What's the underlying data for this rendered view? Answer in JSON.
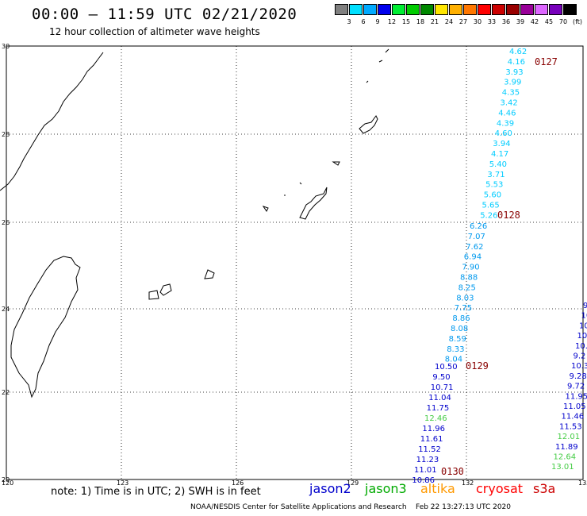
{
  "title": "00:00 — 11:59 UTC 02/21/2020",
  "subtitle": "12 hour collection of altimeter wave heights",
  "legend": {
    "colors": [
      "#808080",
      "#00e0ff",
      "#00aaff",
      "#0000ee",
      "#00ee33",
      "#00cc00",
      "#008800",
      "#ffe600",
      "#ffb000",
      "#ff7700",
      "#ff0000",
      "#cc0000",
      "#990000",
      "#990099",
      "#dd66ff",
      "#7700bb",
      "#000000"
    ],
    "labels": [
      "3",
      "6",
      "9",
      "12",
      "15",
      "18",
      "21",
      "24",
      "27",
      "30",
      "33",
      "36",
      "39",
      "42",
      "45",
      "70",
      "(ft)"
    ]
  },
  "axes": {
    "lon_ticks": [
      "120",
      "123",
      "126",
      "129",
      "132",
      "135"
    ],
    "lat_ticks": [
      "30",
      "28",
      "26",
      "24",
      "22",
      "20"
    ]
  },
  "tracks": {
    "pass_0127": {
      "label": "0127",
      "values": [
        "4.62",
        "4.16",
        "3.93",
        "3.99",
        "4.35",
        "3.42",
        "4.46",
        "4.39",
        "4.60",
        "3.94",
        "4.17",
        "5.40",
        "3.71",
        "5.53",
        "5.60",
        "5.65",
        "5.26"
      ]
    },
    "pass_0128": {
      "label": "0128",
      "values": [
        "6.26",
        "7.07",
        "7.62",
        "6.94",
        "7.90",
        "8.88",
        "8.25",
        "8.03",
        "7.75",
        "8.86",
        "8.08",
        "8.59",
        "8.33",
        "8.04"
      ]
    },
    "pass_0129": {
      "label": "0129",
      "values": [
        "10.50",
        "9.50",
        "10.71",
        "11.04",
        "11.75",
        "12.46",
        "11.96",
        "11.61",
        "11.52",
        "11.23",
        "11.01",
        "10.86"
      ]
    },
    "pass_0130": {
      "label": "0130"
    },
    "right_track": {
      "values": [
        "9",
        "10",
        "10",
        "10.",
        "10.4",
        "9.2",
        "10.3",
        "9.28",
        "9.72",
        "11.95",
        "11.05",
        "11.46",
        "11.53",
        "12.01",
        "11.89",
        "12.64",
        "13.01"
      ]
    }
  },
  "satellites": {
    "jason2": {
      "label": "jason2",
      "color": "#0000cc"
    },
    "jason3": {
      "label": "jason3",
      "color": "#00aa00"
    },
    "altika": {
      "label": "altika",
      "color": "#ff9900"
    },
    "cryosat": {
      "label": "cryosat",
      "color": "#ff0000"
    },
    "s3a": {
      "label": "s3a",
      "color": "#cc0000"
    }
  },
  "note": "note:  1) Time is in UTC;  2) SWH is in feet",
  "footer": "NOAA/NESDIS Center for Satellite Applications and Research    Feb 22 13:27:13 UTC 2020"
}
